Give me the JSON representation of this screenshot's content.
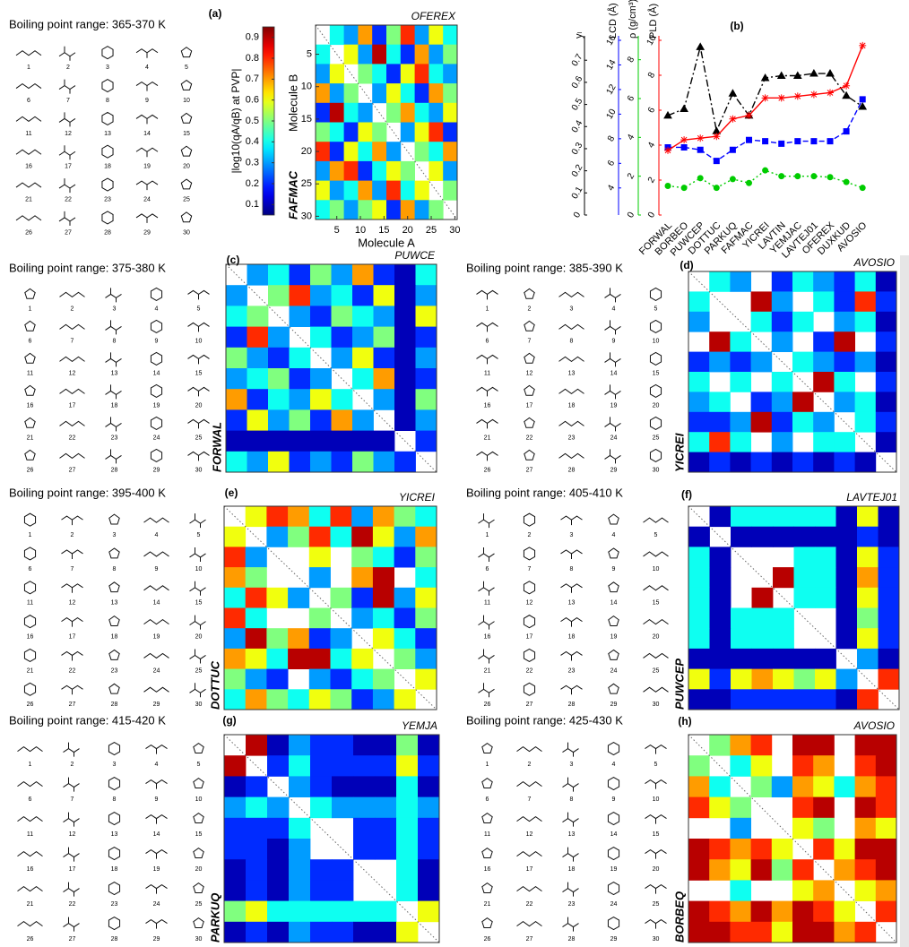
{
  "chart_data": [
    {
      "type": "heatmap",
      "panel": "(a)",
      "title": "OFEREX",
      "side_label": "FAFMAC",
      "xlabel": "Molecule A",
      "ylabel": "Molecule B",
      "xlim": [
        0.5,
        30.5
      ],
      "ylim": [
        30.5,
        0.5
      ],
      "xticks": [
        5,
        10,
        15,
        20,
        25,
        30
      ],
      "yticks": [
        5,
        10,
        15,
        20,
        25,
        30
      ],
      "clim": [
        0.05,
        0.95
      ],
      "colorbar": {
        "label": "|log10(qA/qB) at PVP|",
        "ticks": [
          0.1,
          0.2,
          0.3,
          0.4,
          0.5,
          0.6,
          0.7,
          0.8,
          0.9
        ]
      },
      "z": [
        [
          null,
          0.4,
          0.3,
          0.7,
          0.2,
          0.5,
          0.8,
          0.3,
          0.6,
          0.4
        ],
        [
          0.4,
          null,
          0.6,
          0.3,
          0.9,
          0.4,
          0.2,
          0.7,
          0.3,
          0.5
        ],
        [
          0.3,
          0.6,
          null,
          0.5,
          0.4,
          0.2,
          0.6,
          0.8,
          0.4,
          0.3
        ],
        [
          0.7,
          0.3,
          0.5,
          null,
          0.3,
          0.6,
          0.4,
          0.2,
          0.7,
          0.5
        ],
        [
          0.2,
          0.9,
          0.4,
          0.3,
          null,
          0.5,
          0.7,
          0.4,
          0.3,
          0.6
        ],
        [
          0.5,
          0.4,
          0.2,
          0.6,
          0.5,
          null,
          0.3,
          0.6,
          0.8,
          0.2
        ],
        [
          0.8,
          0.2,
          0.6,
          0.4,
          0.7,
          0.3,
          null,
          0.5,
          0.4,
          0.7
        ],
        [
          0.3,
          0.7,
          0.8,
          0.2,
          0.4,
          0.6,
          0.5,
          null,
          0.6,
          0.3
        ],
        [
          0.6,
          0.3,
          0.4,
          0.7,
          0.3,
          0.8,
          0.4,
          0.6,
          null,
          0.5
        ],
        [
          0.4,
          0.5,
          0.3,
          0.5,
          0.6,
          0.2,
          0.7,
          0.3,
          0.5,
          null
        ]
      ]
    },
    {
      "type": "line",
      "panel": "(b)",
      "categories": [
        "FORWAL",
        "BORBEO",
        "PUWCEP",
        "DOTTUC",
        "PARKUQ",
        "FAFMAC",
        "YICREI",
        "LAVTIN",
        "YEMJAC",
        "LAVTEJ01",
        "OFEREX",
        "DUXKUD",
        "AVOSIO"
      ],
      "series": [
        {
          "name": "yₗ",
          "color": "#000000",
          "line_style": "dashdot",
          "marker": "triangle",
          "ylim": [
            0,
            0.79
          ],
          "yticks": [
            0,
            0.1,
            0.2,
            0.3,
            0.4,
            0.5,
            0.6,
            0.7
          ],
          "values": [
            0.45,
            0.48,
            0.76,
            0.38,
            0.55,
            0.45,
            0.62,
            0.63,
            0.63,
            0.64,
            0.64,
            0.54,
            0.49
          ]
        },
        {
          "name": "LCD (Å)",
          "color": "#0000ff",
          "line_style": "dashed",
          "marker": "square",
          "ylim": [
            1.8,
            16
          ],
          "yticks": [
            4,
            6,
            8,
            10,
            12,
            14,
            16
          ],
          "values": [
            7.3,
            7.3,
            7.1,
            6.2,
            7.1,
            7.9,
            7.8,
            7.6,
            7.8,
            7.8,
            7.8,
            8.6,
            11.2
          ]
        },
        {
          "name": "ρ (g/cm³)",
          "color": "#00cc00",
          "line_style": "dotted",
          "marker": "circle",
          "ylim": [
            0,
            9
          ],
          "yticks": [
            0,
            2,
            4,
            6,
            8
          ],
          "values": [
            1.5,
            1.4,
            1.9,
            1.4,
            1.85,
            1.65,
            2.3,
            2.0,
            2.0,
            2.0,
            1.95,
            1.7,
            1.4
          ]
        },
        {
          "name": "PLD (Å)",
          "color": "#ff0000",
          "line_style": "solid",
          "marker": "star",
          "ylim": [
            0,
            10
          ],
          "yticks": [
            0,
            2,
            4,
            6,
            8,
            10
          ],
          "values": [
            3.7,
            4.3,
            4.4,
            4.5,
            5.5,
            5.7,
            6.7,
            6.7,
            6.8,
            6.9,
            7.0,
            7.4,
            9.7
          ]
        }
      ]
    },
    {
      "type": "heatmap",
      "panel": "(c)",
      "title": "PUWCE",
      "side_label": "FORWAL",
      "clim": [
        0.05,
        0.95
      ],
      "z": [
        [
          null,
          0.3,
          0.4,
          0.2,
          0.5,
          0.3,
          0.7,
          0.2,
          0.1,
          0.4
        ],
        [
          0.3,
          null,
          0.5,
          0.8,
          0.3,
          0.4,
          0.2,
          0.6,
          0.1,
          0.3
        ],
        [
          0.4,
          0.5,
          null,
          0.3,
          0.2,
          0.5,
          0.4,
          0.3,
          0.1,
          0.6
        ],
        [
          0.2,
          0.8,
          0.3,
          null,
          0.4,
          0.2,
          0.3,
          0.5,
          0.1,
          0.2
        ],
        [
          0.5,
          0.3,
          0.2,
          0.4,
          null,
          0.3,
          0.6,
          0.2,
          0.1,
          0.3
        ],
        [
          0.3,
          0.4,
          0.5,
          0.2,
          0.3,
          null,
          0.4,
          0.7,
          0.1,
          0.2
        ],
        [
          0.7,
          0.2,
          0.4,
          0.3,
          0.6,
          0.4,
          null,
          0.3,
          0.1,
          0.5
        ],
        [
          0.2,
          0.6,
          0.3,
          0.5,
          0.2,
          0.7,
          0.3,
          null,
          0.1,
          0.3
        ],
        [
          0.1,
          0.1,
          0.1,
          0.1,
          0.1,
          0.1,
          0.1,
          0.1,
          null,
          0.2
        ],
        [
          0.4,
          0.3,
          0.6,
          0.2,
          0.3,
          0.2,
          0.5,
          0.3,
          0.2,
          null
        ]
      ]
    },
    {
      "type": "heatmap",
      "panel": "(d)",
      "title": "AVOSIO",
      "side_label": "YICREI",
      "clim": [
        0.05,
        0.95
      ],
      "z": [
        [
          null,
          0.4,
          0.3,
          null,
          0.2,
          0.4,
          0.3,
          0.2,
          0.4,
          0.1
        ],
        [
          0.4,
          null,
          null,
          0.9,
          0.3,
          null,
          0.4,
          0.2,
          0.8,
          0.2
        ],
        [
          0.3,
          null,
          null,
          0.4,
          0.2,
          0.4,
          null,
          0.3,
          0.4,
          0.1
        ],
        [
          null,
          0.9,
          0.4,
          null,
          0.3,
          null,
          0.2,
          0.9,
          null,
          0.2
        ],
        [
          0.2,
          0.3,
          0.2,
          0.3,
          null,
          0.4,
          0.3,
          0.2,
          0.3,
          0.1
        ],
        [
          0.4,
          null,
          0.4,
          null,
          0.4,
          null,
          0.9,
          0.4,
          null,
          0.2
        ],
        [
          0.3,
          0.4,
          null,
          0.2,
          0.3,
          0.9,
          null,
          0.3,
          0.4,
          0.1
        ],
        [
          0.2,
          0.2,
          0.3,
          0.9,
          0.2,
          0.4,
          0.3,
          null,
          0.4,
          0.2
        ],
        [
          0.4,
          0.8,
          0.4,
          null,
          0.3,
          null,
          0.4,
          0.4,
          null,
          0.1
        ],
        [
          0.1,
          0.2,
          0.1,
          0.2,
          0.1,
          0.2,
          0.1,
          0.2,
          0.1,
          null
        ]
      ]
    },
    {
      "type": "heatmap",
      "panel": "(e)",
      "title": "YICREI",
      "side_label": "DOTTUC",
      "clim": [
        0.05,
        0.95
      ],
      "z": [
        [
          null,
          0.6,
          0.8,
          0.7,
          0.4,
          0.8,
          0.3,
          0.7,
          0.5,
          0.4
        ],
        [
          0.6,
          null,
          0.3,
          0.5,
          0.8,
          0.4,
          0.9,
          0.6,
          0.3,
          0.7
        ],
        [
          0.8,
          0.3,
          null,
          null,
          0.6,
          null,
          0.5,
          0.4,
          0.2,
          0.5
        ],
        [
          0.7,
          0.5,
          null,
          null,
          0.3,
          null,
          0.7,
          0.9,
          null,
          0.4
        ],
        [
          0.4,
          0.8,
          0.6,
          0.3,
          null,
          0.5,
          0.2,
          0.9,
          0.3,
          0.6
        ],
        [
          0.8,
          0.4,
          null,
          null,
          0.5,
          null,
          0.3,
          0.4,
          0.2,
          0.5
        ],
        [
          0.3,
          0.9,
          0.5,
          0.7,
          0.2,
          0.3,
          null,
          0.6,
          0.4,
          0.2
        ],
        [
          0.7,
          0.6,
          0.4,
          0.9,
          0.9,
          0.4,
          0.6,
          null,
          0.5,
          0.3
        ],
        [
          0.5,
          0.3,
          0.2,
          null,
          0.3,
          0.2,
          0.4,
          0.5,
          null,
          0.6
        ],
        [
          0.4,
          0.7,
          0.5,
          0.4,
          0.6,
          0.5,
          0.2,
          0.3,
          0.6,
          null
        ]
      ]
    },
    {
      "type": "heatmap",
      "panel": "(f)",
      "title": "LAVTEJ01",
      "side_label": "PUWCEP",
      "clim": [
        0.05,
        0.95
      ],
      "z": [
        [
          null,
          0.1,
          0.4,
          0.4,
          0.4,
          0.4,
          0.4,
          0.1,
          0.6,
          0.1
        ],
        [
          0.1,
          null,
          0.1,
          0.1,
          0.1,
          0.1,
          0.1,
          0.1,
          0.2,
          0.1
        ],
        [
          0.4,
          0.1,
          null,
          null,
          null,
          0.4,
          0.4,
          0.1,
          0.6,
          0.2
        ],
        [
          0.4,
          0.1,
          null,
          null,
          0.9,
          0.4,
          0.4,
          0.1,
          0.7,
          0.2
        ],
        [
          0.4,
          0.1,
          null,
          0.9,
          null,
          0.4,
          0.4,
          0.1,
          0.6,
          0.2
        ],
        [
          0.4,
          0.1,
          0.4,
          0.4,
          0.4,
          null,
          null,
          0.1,
          0.5,
          0.2
        ],
        [
          0.4,
          0.1,
          0.4,
          0.4,
          0.4,
          null,
          null,
          0.1,
          0.6,
          0.2
        ],
        [
          0.1,
          0.1,
          0.1,
          0.1,
          0.1,
          0.1,
          0.1,
          null,
          0.3,
          0.1
        ],
        [
          0.6,
          0.2,
          0.6,
          0.7,
          0.6,
          0.5,
          0.6,
          0.3,
          null,
          0.8
        ],
        [
          0.1,
          0.1,
          0.2,
          0.2,
          0.2,
          0.2,
          0.2,
          0.1,
          0.8,
          null
        ]
      ]
    },
    {
      "type": "heatmap",
      "panel": "(g)",
      "title": "YEMJA",
      "side_label": "PARKUQ",
      "clim": [
        0.05,
        0.95
      ],
      "z": [
        [
          null,
          0.9,
          0.1,
          0.3,
          0.2,
          0.2,
          0.1,
          0.1,
          0.5,
          0.1
        ],
        [
          0.9,
          null,
          0.2,
          0.4,
          0.2,
          0.2,
          0.2,
          0.2,
          0.6,
          0.2
        ],
        [
          0.1,
          0.2,
          null,
          0.3,
          0.2,
          0.1,
          0.1,
          0.1,
          0.4,
          0.1
        ],
        [
          0.3,
          0.4,
          0.3,
          null,
          0.4,
          0.3,
          0.3,
          0.3,
          0.4,
          0.3
        ],
        [
          0.2,
          0.2,
          0.2,
          0.4,
          null,
          null,
          0.2,
          0.2,
          0.4,
          0.2
        ],
        [
          0.2,
          0.2,
          0.1,
          0.3,
          null,
          null,
          0.2,
          0.2,
          0.4,
          0.2
        ],
        [
          0.1,
          0.2,
          0.1,
          0.3,
          0.2,
          0.2,
          null,
          null,
          0.4,
          0.1
        ],
        [
          0.1,
          0.2,
          0.1,
          0.3,
          0.2,
          0.2,
          null,
          null,
          0.4,
          0.1
        ],
        [
          0.5,
          0.6,
          0.4,
          0.4,
          0.4,
          0.4,
          0.4,
          0.4,
          null,
          0.6
        ],
        [
          0.1,
          0.2,
          0.1,
          0.3,
          0.2,
          0.2,
          0.1,
          0.1,
          0.6,
          null
        ]
      ]
    },
    {
      "type": "heatmap",
      "panel": "(h)",
      "title": "AVOSIO",
      "side_label": "BORBEQ",
      "clim": [
        0.05,
        0.95
      ],
      "z": [
        [
          null,
          0.5,
          0.7,
          0.8,
          null,
          0.9,
          0.9,
          null,
          0.9,
          0.9
        ],
        [
          0.5,
          null,
          0.4,
          0.6,
          null,
          0.8,
          0.7,
          null,
          0.8,
          0.9
        ],
        [
          0.7,
          0.4,
          null,
          0.5,
          0.3,
          0.7,
          0.6,
          0.4,
          0.7,
          0.8
        ],
        [
          0.8,
          0.6,
          0.5,
          null,
          null,
          0.8,
          0.9,
          null,
          0.9,
          0.8
        ],
        [
          null,
          null,
          0.3,
          null,
          null,
          0.6,
          0.5,
          null,
          0.7,
          0.6
        ],
        [
          0.9,
          0.8,
          0.7,
          0.8,
          0.6,
          null,
          0.8,
          0.6,
          0.9,
          0.9
        ],
        [
          0.9,
          0.7,
          0.6,
          0.9,
          0.5,
          0.8,
          null,
          0.7,
          0.8,
          0.9
        ],
        [
          null,
          null,
          0.4,
          null,
          null,
          0.6,
          0.7,
          null,
          0.6,
          0.7
        ],
        [
          0.9,
          0.8,
          0.7,
          0.9,
          0.7,
          0.9,
          0.8,
          0.6,
          null,
          0.8
        ],
        [
          0.9,
          0.9,
          0.8,
          0.8,
          0.6,
          0.9,
          0.9,
          0.7,
          0.8,
          null
        ]
      ]
    }
  ],
  "molecule_sets": [
    {
      "title": "Boiling point range: 365-370 K",
      "labels": [
        1,
        2,
        3,
        4,
        5,
        6,
        7,
        8,
        9,
        10,
        11,
        12,
        13,
        14,
        15,
        16,
        17,
        18,
        19,
        20,
        21,
        22,
        23,
        24,
        25,
        26,
        27,
        28,
        29,
        30
      ]
    },
    {
      "title": "Boiling point range: 375-380 K",
      "labels": [
        1,
        2,
        3,
        4,
        5,
        6,
        7,
        8,
        9,
        10,
        11,
        12,
        13,
        14,
        15,
        16,
        17,
        18,
        19,
        20,
        21,
        22,
        23,
        24,
        25,
        26,
        27,
        28,
        29,
        30
      ]
    },
    {
      "title": "Boiling point range: 385-390 K",
      "labels": [
        1,
        2,
        3,
        4,
        5,
        6,
        7,
        8,
        9,
        10,
        11,
        12,
        13,
        14,
        15,
        16,
        17,
        18,
        19,
        20,
        21,
        22,
        23,
        24,
        25,
        26,
        27,
        28,
        29,
        30
      ]
    },
    {
      "title": "Boiling point range: 395-400 K",
      "labels": [
        1,
        2,
        3,
        4,
        5,
        6,
        7,
        8,
        9,
        10,
        11,
        12,
        13,
        14,
        15,
        16,
        17,
        18,
        19,
        20,
        21,
        22,
        23,
        24,
        25,
        26,
        27,
        28,
        29,
        30
      ]
    },
    {
      "title": "Boiling point range: 405-410 K",
      "labels": [
        1,
        2,
        3,
        4,
        5,
        6,
        7,
        8,
        9,
        10,
        11,
        12,
        13,
        14,
        15,
        16,
        17,
        18,
        19,
        20,
        21,
        22,
        23,
        24,
        25,
        26,
        27,
        28,
        29,
        30
      ]
    },
    {
      "title": "Boiling point range: 415-420 K",
      "labels": [
        1,
        2,
        3,
        4,
        5,
        6,
        7,
        8,
        9,
        10,
        11,
        12,
        13,
        14,
        15,
        16,
        17,
        18,
        19,
        20,
        21,
        22,
        23,
        24,
        25,
        26,
        27,
        28,
        29,
        30
      ]
    },
    {
      "title": "Boiling point range: 425-430 K",
      "labels": [
        1,
        2,
        3,
        4,
        5,
        6,
        7,
        8,
        9,
        10,
        11,
        12,
        13,
        14,
        15,
        16,
        17,
        18,
        19,
        20,
        21,
        22,
        23,
        24,
        25,
        26,
        27,
        28,
        29,
        30
      ]
    }
  ]
}
